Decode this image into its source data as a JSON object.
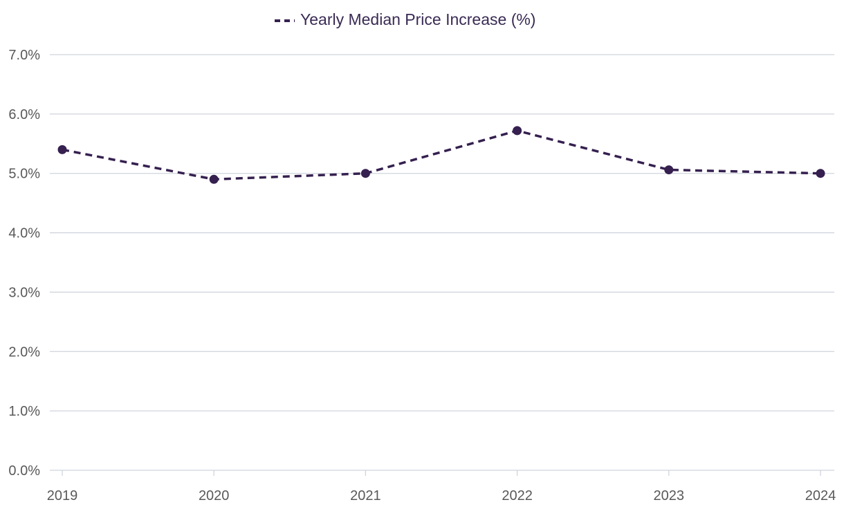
{
  "chart_data": {
    "type": "line",
    "categories": [
      "2019",
      "2020",
      "2021",
      "2022",
      "2023",
      "2024"
    ],
    "series": [
      {
        "name": "Yearly Median Price Increase (%)",
        "values": [
          5.4,
          4.9,
          5.0,
          5.72,
          5.06,
          5.0
        ],
        "color": "#35204f",
        "line_style": "dashed",
        "marker": "circle"
      }
    ],
    "y_ticks": [
      "0.0%",
      "1.0%",
      "2.0%",
      "3.0%",
      "4.0%",
      "5.0%",
      "6.0%",
      "7.0%"
    ],
    "ylim": [
      0,
      7
    ],
    "grid": "horizontal",
    "legend_position": "top-center",
    "gridline_color": "#cfd4dc",
    "tick_label_color": "#595959"
  }
}
